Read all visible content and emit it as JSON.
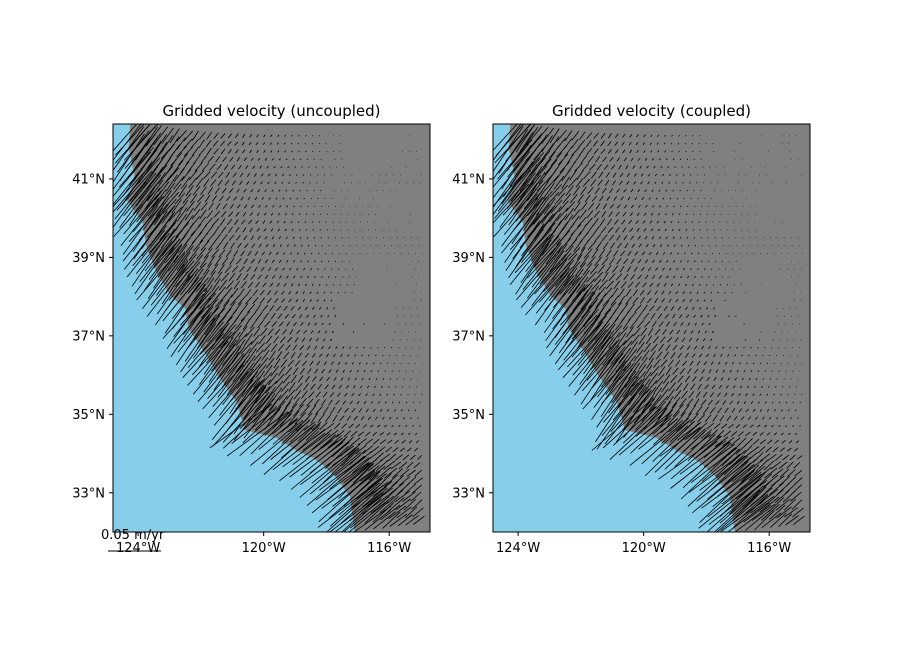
{
  "colors": {
    "ocean": "#87ceeb",
    "land": "#808080",
    "arrows": "#000000"
  },
  "quiver_key": {
    "label": "0.05 m/yr",
    "value_m_per_yr": 0.05
  },
  "chart_data": [
    {
      "type": "quiver-map",
      "title": "Gridded velocity (uncoupled)",
      "xlim": [
        -124.8,
        -114.7
      ],
      "ylim": [
        32.0,
        42.4
      ],
      "xticks": [
        {
          "value": -124,
          "label": "124°W"
        },
        {
          "value": -120,
          "label": "120°W"
        },
        {
          "value": -116,
          "label": "116°W"
        }
      ],
      "yticks": [
        {
          "value": 41,
          "label": "41°N"
        },
        {
          "value": 39,
          "label": "39°N"
        },
        {
          "value": 37,
          "label": "37°N"
        },
        {
          "value": 35,
          "label": "35°N"
        },
        {
          "value": 33,
          "label": "33°N"
        }
      ],
      "grid": false,
      "coupled": false
    },
    {
      "type": "quiver-map",
      "title": "Gridded velocity (coupled)",
      "xlim": [
        -124.8,
        -114.7
      ],
      "ylim": [
        32.0,
        42.4
      ],
      "xticks": [
        {
          "value": -124,
          "label": "124°W"
        },
        {
          "value": -120,
          "label": "120°W"
        },
        {
          "value": -116,
          "label": "116°W"
        }
      ],
      "yticks": [
        {
          "value": 41,
          "label": "41°N"
        },
        {
          "value": 39,
          "label": "39°N"
        },
        {
          "value": 37,
          "label": "37°N"
        },
        {
          "value": 35,
          "label": "35°N"
        },
        {
          "value": 33,
          "label": "33°N"
        }
      ],
      "grid": false,
      "coupled": true
    }
  ]
}
